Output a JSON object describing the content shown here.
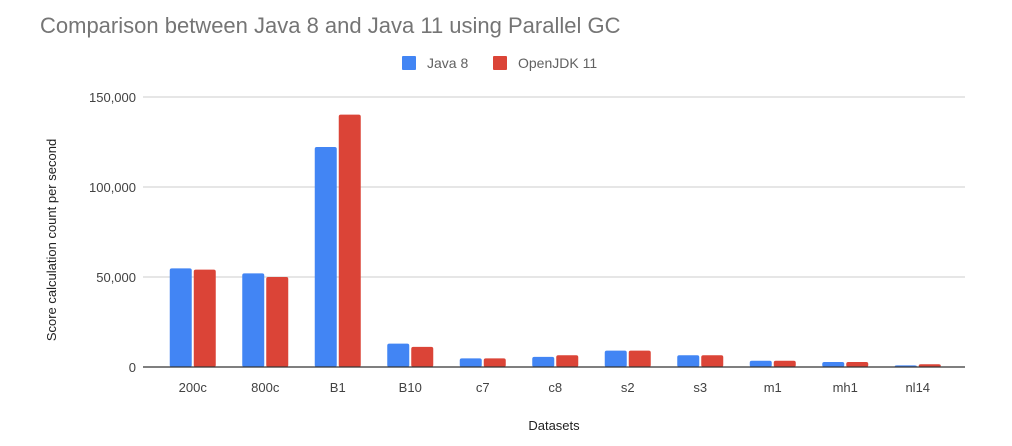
{
  "chart_data": {
    "type": "bar",
    "title": "Comparison between Java 8 and Java 11 using Parallel GC",
    "xlabel": "Datasets",
    "ylabel": "Score calculation count per second",
    "categories": [
      "200c",
      "800c",
      "B1",
      "B10",
      "c7",
      "c8",
      "s2",
      "s3",
      "m1",
      "mh1",
      "nl14"
    ],
    "series": [
      {
        "name": "Java 8",
        "color": "#4285f4",
        "values": [
          54800,
          52000,
          122200,
          13000,
          4800,
          5600,
          9100,
          6500,
          3500,
          2800,
          900
        ]
      },
      {
        "name": "OpenJDK 11",
        "color": "#db4437",
        "values": [
          54100,
          50000,
          140200,
          11200,
          4800,
          6500,
          9100,
          6500,
          3500,
          2800,
          1500
        ]
      }
    ],
    "ylim": [
      0,
      150000
    ],
    "yticks": [
      0,
      50000,
      100000,
      150000
    ],
    "ytick_labels": [
      "0",
      "50,000",
      "100,000",
      "150,000"
    ],
    "grid": true,
    "legend_position": "top-center"
  }
}
